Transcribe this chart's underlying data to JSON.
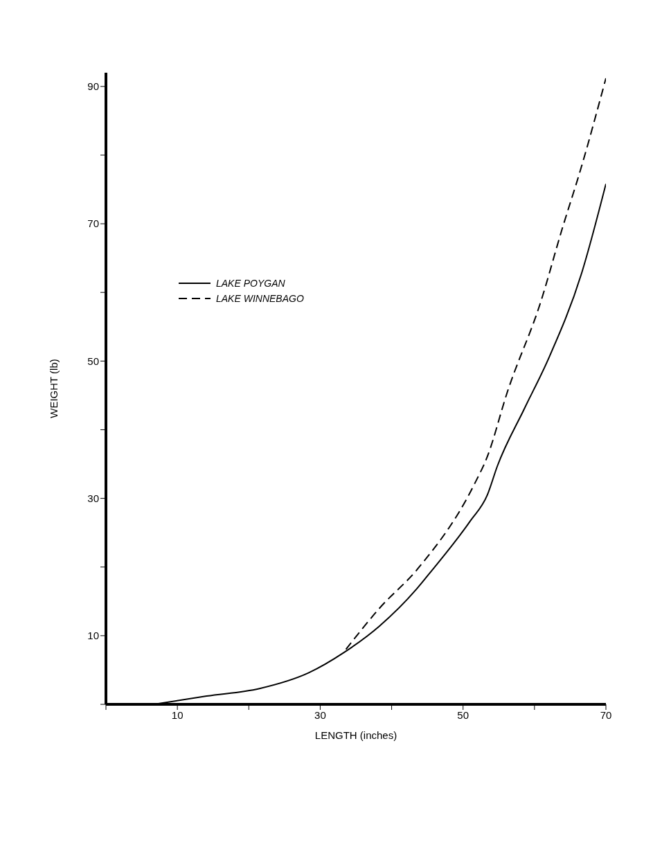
{
  "chart_data": {
    "type": "line",
    "xlabel": "LENGTH (inches)",
    "ylabel": "WEIGHT (lb)",
    "xlim": [
      0,
      70
    ],
    "xticks": [
      {
        "value": 0,
        "label": null
      },
      10,
      {
        "value": 20,
        "label": null
      },
      30,
      {
        "value": 40,
        "label": null
      },
      50,
      {
        "value": 60,
        "label": null
      },
      70
    ],
    "ylim": [
      0,
      92
    ],
    "yticks": [
      {
        "value": 0,
        "label": null
      },
      10,
      {
        "value": 20,
        "label": null
      },
      30,
      {
        "value": 40,
        "label": null
      },
      50,
      {
        "value": 60,
        "label": null
      },
      70,
      {
        "value": 80,
        "label": null
      },
      90
    ],
    "grid": false,
    "legend": "top left",
    "marker": "none",
    "series": [
      {
        "name": "LAKE POYGAN",
        "color": "#000000",
        "line_style": "solid",
        "x": [
          6.7,
          14.1,
          21.5,
          28.4,
          33.4,
          38.3,
          43.5,
          45.4,
          51.0,
          53.4,
          54.8,
          58.6,
          61.9,
          66.6,
          70
        ],
        "values": [
          0,
          1.2,
          2.3,
          4.6,
          7.6,
          11.4,
          16.8,
          19.2,
          26.7,
          30.5,
          34.7,
          43.1,
          50.2,
          62.8,
          75.8
        ]
      },
      {
        "name": "LAKE WINNEBAGO",
        "color": "#000000",
        "line_style": "dashed",
        "x": [
          33.6,
          38.3,
          43.7,
          51.5,
          53.4,
          56.2,
          60.9,
          63.8,
          66.6,
          70
        ],
        "values": [
          8.0,
          14.0,
          19.8,
          31.9,
          36.1,
          45.5,
          58.7,
          69.0,
          78.4,
          91.2
        ]
      }
    ]
  }
}
